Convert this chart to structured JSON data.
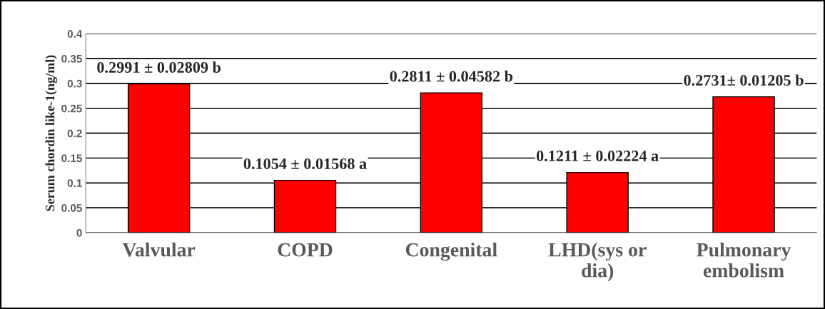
{
  "chart_data": {
    "type": "bar",
    "ylabel": "Serum chordin like-1(ng/ml)",
    "categories": [
      "Valvular",
      "COPD",
      "Congenital",
      "LHD(sys or\ndia)",
      "Pulmonary\nembolism"
    ],
    "values": [
      0.2991,
      0.1054,
      0.2811,
      0.1211,
      0.2731
    ],
    "value_labels": [
      "0.2991 ± 0.02809 b",
      "0.1054 ± 0.01568 a",
      "0.2811 ± 0.04582 b",
      "0.1211 ± 0.02224 a",
      "0.2731± 0.01205 b"
    ],
    "color": "#ff0000",
    "ylim": [
      0,
      0.4
    ],
    "yticks": [
      0,
      0.05,
      0.1,
      0.15,
      0.2,
      0.25,
      0.3,
      0.35,
      0.4
    ],
    "grid": "y",
    "legend": false
  }
}
